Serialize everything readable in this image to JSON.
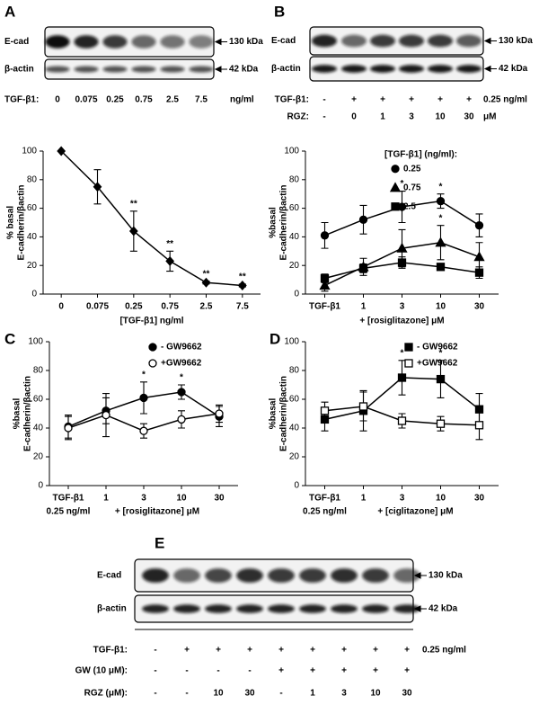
{
  "chart_data": [
    {
      "type": "line",
      "categories": [
        "0",
        "0.075",
        "0.25",
        "0.75",
        "2.5",
        "7.5"
      ],
      "series": [
        {
          "color": "#000000",
          "marker": "diamond",
          "filled": true,
          "values": [
            100,
            75,
            44,
            23,
            8,
            6
          ],
          "errors": [
            0,
            12,
            14,
            7,
            1,
            1
          ],
          "significance": [
            null,
            null,
            "**",
            "**",
            "**",
            "**"
          ]
        }
      ],
      "xlabel": "[TGF-β1] ng/ml",
      "ylabel": [
        "% basal",
        "E-cadherin/βactin"
      ],
      "ylim": [
        0,
        100
      ],
      "yticks": [
        0,
        20,
        40,
        60,
        80,
        100
      ]
    },
    {
      "type": "line",
      "categories": [
        "TGF-β1",
        "1",
        "3",
        "10",
        "30"
      ],
      "legend_title": "[TGF-β1] (ng/ml):",
      "series": [
        {
          "name": "0.25",
          "color": "#000000",
          "marker": "circle",
          "filled": true,
          "values": [
            41,
            52,
            61,
            65,
            48
          ],
          "errors": [
            9,
            10,
            11,
            5,
            8
          ],
          "significance": [
            null,
            null,
            "*",
            "*",
            null
          ]
        },
        {
          "name": "0.75",
          "color": "#000000",
          "marker": "triangle",
          "filled": true,
          "values": [
            6,
            19,
            32,
            36,
            26
          ],
          "errors": [
            4,
            6,
            13,
            12,
            10
          ],
          "significance": [
            null,
            null,
            null,
            "*",
            null
          ]
        },
        {
          "name": "2.5",
          "color": "#000000",
          "marker": "square",
          "filled": true,
          "values": [
            11,
            18,
            22,
            19,
            15
          ],
          "errors": [
            3,
            3,
            4,
            2,
            4
          ]
        }
      ],
      "xlabel": "+ [rosiglitazone] μM",
      "ylabel": [
        "%basal",
        "E-cadherin/βactin"
      ],
      "ylim": [
        0,
        100
      ],
      "yticks": [
        0,
        20,
        40,
        60,
        80,
        100
      ]
    },
    {
      "type": "line",
      "label": "C",
      "categories": [
        "TGF-β1",
        "1",
        "3",
        "10",
        "30"
      ],
      "category_note": "0.25 ng/ml",
      "series": [
        {
          "name": "- GW9662",
          "color": "#000000",
          "marker": "circle",
          "filled": true,
          "values": [
            41,
            52,
            61,
            65,
            48
          ],
          "errors": [
            8,
            9,
            11,
            5,
            7
          ],
          "significance": [
            null,
            null,
            "*",
            "*",
            null
          ]
        },
        {
          "name": "+GW9662",
          "color": "#000000",
          "marker": "circle",
          "filled": false,
          "values": [
            40,
            49,
            38,
            46,
            50
          ],
          "errors": [
            8,
            15,
            5,
            6,
            6
          ]
        }
      ],
      "xlabel": "+ [rosiglitazone] μM",
      "ylabel": [
        "%basal",
        "E-cadherin/βactin"
      ],
      "ylim": [
        0,
        100
      ],
      "yticks": [
        0,
        20,
        40,
        60,
        80,
        100
      ]
    },
    {
      "type": "line",
      "label": "D",
      "categories": [
        "TGF-β1",
        "1",
        "3",
        "10",
        "30"
      ],
      "category_note": "0.25 ng/ml",
      "series": [
        {
          "name": "- GW9662",
          "color": "#000000",
          "marker": "square",
          "filled": true,
          "values": [
            46,
            52,
            75,
            74,
            53
          ],
          "errors": [
            8,
            14,
            12,
            13,
            11
          ],
          "significance": [
            null,
            null,
            "*",
            "*",
            null
          ]
        },
        {
          "name": "+GW9662",
          "color": "#000000",
          "marker": "square",
          "filled": false,
          "values": [
            52,
            55,
            45,
            43,
            42
          ],
          "errors": [
            6,
            10,
            5,
            5,
            10
          ]
        }
      ],
      "xlabel": "+ [ciglitazone] μM",
      "ylabel": [
        "%basal",
        "E-cadherin/βactin"
      ],
      "ylim": [
        0,
        100
      ],
      "yticks": [
        0,
        20,
        40,
        60,
        80,
        100
      ]
    }
  ],
  "blots": [
    {
      "label": "A",
      "bands": [
        {
          "name": "E-cad",
          "size": "130 kDa"
        },
        {
          "name": "β-actin",
          "size": "42 kDa"
        }
      ],
      "rows": [
        {
          "name": "TGF-β1:",
          "values": [
            "0",
            "0.075",
            "0.25",
            "0.75",
            "2.5",
            "7.5"
          ],
          "unit": "ng/ml"
        }
      ]
    },
    {
      "label": "B",
      "bands": [
        {
          "name": "E-cad",
          "size": "130 kDa"
        },
        {
          "name": "β-actin",
          "size": "42 kDa"
        }
      ],
      "rows": [
        {
          "name": "TGF-β1:",
          "values": [
            "-",
            "+",
            "+",
            "+",
            "+",
            "+"
          ],
          "unit": "0.25 ng/ml"
        },
        {
          "name": "RGZ:",
          "values": [
            "-",
            "0",
            "1",
            "3",
            "10",
            "30"
          ],
          "unit": "μM"
        }
      ]
    },
    {
      "label": "E",
      "bands": [
        {
          "name": "E-cad",
          "size": "130 kDa"
        },
        {
          "name": "β-actin",
          "size": "42 kDa"
        }
      ],
      "rows": [
        {
          "name": "TGF-β1:",
          "values": [
            "-",
            "+",
            "+",
            "+",
            "+",
            "+",
            "+",
            "+",
            "+"
          ],
          "unit": "0.25 ng/ml"
        },
        {
          "name": "GW (10 μM):",
          "values": [
            "-",
            "-",
            "-",
            "-",
            "+",
            "+",
            "+",
            "+",
            "+"
          ]
        },
        {
          "name": "RGZ (μM):",
          "values": [
            "-",
            "-",
            "10",
            "30",
            "-",
            "1",
            "3",
            "10",
            "30"
          ]
        }
      ]
    }
  ]
}
